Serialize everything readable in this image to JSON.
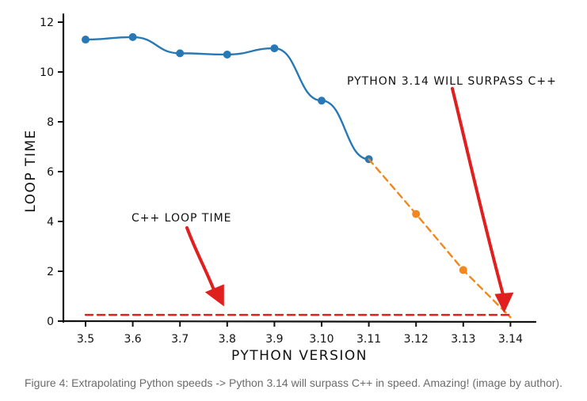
{
  "caption": "Figure 4: Extrapolating Python speeds -> Python 3.14 will surpass C++ in speed. Amazing! (image by author).",
  "chart_data": {
    "type": "line",
    "categories": [
      "3.5",
      "3.6",
      "3.7",
      "3.8",
      "3.9",
      "3.10",
      "3.11",
      "3.12",
      "3.13",
      "3.14"
    ],
    "xlabel": "PYTHON VERSION",
    "ylabel": "LOOP TIME",
    "ylim": [
      0,
      12
    ],
    "yticks": [
      0,
      2,
      4,
      6,
      8,
      10,
      12
    ],
    "grid": false,
    "series": [
      {
        "name": "",
        "style": "solid",
        "color": "#2878b5",
        "points": [
          {
            "x": "3.5",
            "y": 11.3
          },
          {
            "x": "3.6",
            "y": 11.4
          },
          {
            "x": "3.7",
            "y": 10.75
          },
          {
            "x": "3.8",
            "y": 10.7
          },
          {
            "x": "3.9",
            "y": 10.95
          },
          {
            "x": "3.10",
            "y": 8.85
          },
          {
            "x": "3.11",
            "y": 6.5
          }
        ]
      },
      {
        "name": "",
        "style": "dashed",
        "color": "#f0871f",
        "points": [
          {
            "x": "3.11",
            "y": 6.5
          },
          {
            "x": "3.12",
            "y": 4.3
          },
          {
            "x": "3.13",
            "y": 2.05
          },
          {
            "x": "3.14",
            "y": 0.15
          }
        ],
        "markers": [
          "3.12",
          "3.13"
        ]
      },
      {
        "name": "",
        "style": "dashed",
        "color": "#e01f1f",
        "points": [
          {
            "x": "3.5",
            "y": 0.25
          },
          {
            "x": "3.14",
            "y": 0.25
          }
        ]
      }
    ],
    "annotations": [
      {
        "text": "PYTHON 3.14 WILL SURPASS C++",
        "arrow_color": "#e01f1f",
        "points_to": {
          "x": "3.14",
          "y": 0.2
        }
      },
      {
        "text": "C++ LOOP TIME",
        "arrow_color": "#e01f1f",
        "points_to": {
          "x": "3.8",
          "y": 0.4
        }
      }
    ]
  }
}
